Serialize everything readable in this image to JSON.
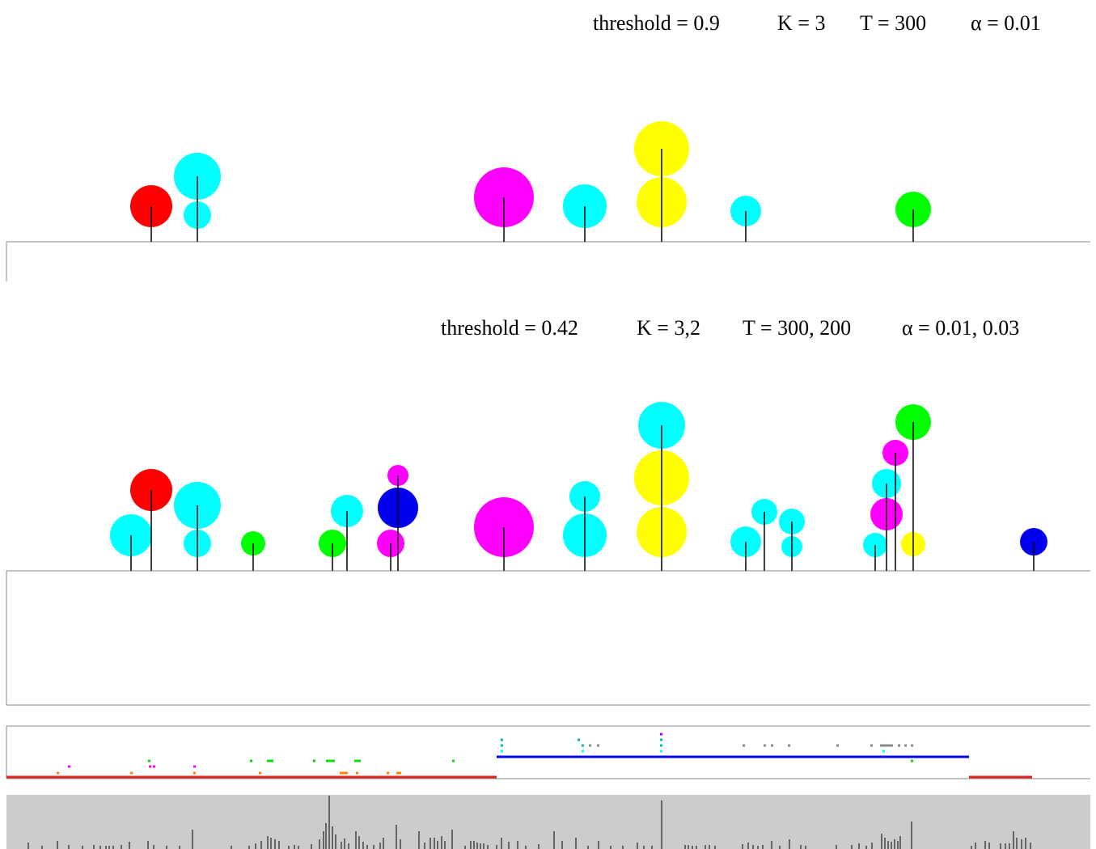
{
  "chart_data": [
    {
      "type": "scatter",
      "subtype": "lollipop-circles",
      "params": {
        "threshold": "threshold = 0.9",
        "K": "K = 3",
        "T": "T = 300",
        "alpha": "α = 0.01"
      },
      "stems": [
        {
          "x": 187,
          "circles": [
            {
              "y": 255,
              "r": 26,
              "color": "#ff0000"
            }
          ]
        },
        {
          "x": 244,
          "circles": [
            {
              "y": 218,
              "r": 29,
              "color": "#00ffff"
            },
            {
              "y": 266,
              "r": 17,
              "color": "#00ffff"
            }
          ]
        },
        {
          "x": 623,
          "circles": [
            {
              "y": 244,
              "r": 37,
              "color": "#ff00ff"
            }
          ]
        },
        {
          "x": 723,
          "circles": [
            {
              "y": 255,
              "r": 27,
              "color": "#00ffff"
            }
          ]
        },
        {
          "x": 818,
          "circles": [
            {
              "y": 184,
              "r": 34,
              "color": "#ffff00"
            },
            {
              "y": 250,
              "r": 31,
              "color": "#ffff00"
            }
          ]
        },
        {
          "x": 922,
          "circles": [
            {
              "y": 261,
              "r": 19,
              "color": "#00ffff"
            }
          ]
        },
        {
          "x": 1129,
          "circles": [
            {
              "y": 259,
              "r": 22,
              "color": "#00ff00"
            }
          ]
        }
      ]
    },
    {
      "type": "scatter",
      "subtype": "lollipop-circles",
      "params": {
        "threshold": "threshold = 0.42",
        "K": "K = 3,2",
        "T": "T = 300, 200",
        "alpha": "α = 0.01, 0.03"
      },
      "stems": [
        {
          "x": 162,
          "circles": [
            {
              "y": 662,
              "r": 26,
              "color": "#00ffff"
            }
          ]
        },
        {
          "x": 187,
          "circles": [
            {
              "y": 606,
              "r": 26,
              "color": "#ff0000"
            }
          ]
        },
        {
          "x": 244,
          "circles": [
            {
              "y": 625,
              "r": 29,
              "color": "#00ffff"
            },
            {
              "y": 672,
              "r": 17,
              "color": "#00ffff"
            }
          ]
        },
        {
          "x": 313,
          "circles": [
            {
              "y": 672,
              "r": 15,
              "color": "#00ff00"
            }
          ]
        },
        {
          "x": 411,
          "circles": [
            {
              "y": 672,
              "r": 17,
              "color": "#00ff00"
            }
          ]
        },
        {
          "x": 429,
          "circles": [
            {
              "y": 632,
              "r": 20,
              "color": "#00ffff"
            }
          ]
        },
        {
          "x": 483,
          "circles": [
            {
              "y": 672,
              "r": 17,
              "color": "#ff00ff"
            }
          ]
        },
        {
          "x": 492,
          "circles": [
            {
              "y": 588,
              "r": 13,
              "color": "#ff00ff"
            },
            {
              "y": 628,
              "r": 25,
              "color": "#0000ee"
            }
          ]
        },
        {
          "x": 623,
          "circles": [
            {
              "y": 652,
              "r": 37,
              "color": "#ff00ff"
            }
          ]
        },
        {
          "x": 723,
          "circles": [
            {
              "y": 614,
              "r": 19,
              "color": "#00ffff"
            },
            {
              "y": 662,
              "r": 27,
              "color": "#00ffff"
            }
          ]
        },
        {
          "x": 818,
          "circles": [
            {
              "y": 526,
              "r": 29,
              "color": "#00ffff"
            },
            {
              "y": 591,
              "r": 34,
              "color": "#ffff00"
            },
            {
              "y": 658,
              "r": 31,
              "color": "#ffff00"
            }
          ]
        },
        {
          "x": 922,
          "circles": [
            {
              "y": 670,
              "r": 19,
              "color": "#00ffff"
            }
          ]
        },
        {
          "x": 945,
          "circles": [
            {
              "y": 633,
              "r": 16,
              "color": "#00ffff"
            }
          ]
        },
        {
          "x": 979,
          "circles": [
            {
              "y": 645,
              "r": 16,
              "color": "#00ffff"
            },
            {
              "y": 676,
              "r": 13,
              "color": "#00ffff"
            }
          ]
        },
        {
          "x": 1082,
          "circles": [
            {
              "y": 674,
              "r": 15,
              "color": "#00ffff"
            }
          ]
        },
        {
          "x": 1096,
          "circles": [
            {
              "y": 598,
              "r": 18,
              "color": "#00ffff"
            },
            {
              "y": 636,
              "r": 20,
              "color": "#ff00ff"
            }
          ]
        },
        {
          "x": 1107,
          "circles": [
            {
              "y": 560,
              "r": 16,
              "color": "#ff00ff"
            }
          ]
        },
        {
          "x": 1129,
          "circles": [
            {
              "y": 522,
              "r": 22,
              "color": "#00ff00"
            },
            {
              "y": 673,
              "r": 15,
              "color": "#ffff00"
            }
          ]
        },
        {
          "x": 1278,
          "circles": [
            {
              "y": 670,
              "r": 17,
              "color": "#0000ee"
            }
          ]
        }
      ]
    },
    {
      "type": "timeline",
      "segments": [
        {
          "x1": 8,
          "x2": 614,
          "y": 961,
          "color": "#dd2222"
        },
        {
          "x1": 614,
          "x2": 1198,
          "y": 936,
          "color": "#0000ee"
        },
        {
          "x1": 1198,
          "x2": 1276,
          "y": 961,
          "color": "#dd2222"
        }
      ],
      "marks": [
        {
          "x": 70,
          "y": 956,
          "w": 3,
          "color": "#ff8800"
        },
        {
          "x": 84,
          "y": 948,
          "w": 3,
          "color": "#ff00ff"
        },
        {
          "x": 161,
          "y": 956,
          "w": 3,
          "color": "#ff8800"
        },
        {
          "x": 183,
          "y": 941,
          "w": 3,
          "color": "#00dd00"
        },
        {
          "x": 184,
          "y": 948,
          "w": 3,
          "color": "#ff00ff"
        },
        {
          "x": 189,
          "y": 948,
          "w": 3,
          "color": "#ff00ff"
        },
        {
          "x": 239,
          "y": 948,
          "w": 3,
          "color": "#ff00ff"
        },
        {
          "x": 239,
          "y": 956,
          "w": 3,
          "color": "#ff8800"
        },
        {
          "x": 309,
          "y": 941,
          "w": 3,
          "color": "#00dd00"
        },
        {
          "x": 320,
          "y": 956,
          "w": 3,
          "color": "#ff8800"
        },
        {
          "x": 330,
          "y": 941,
          "w": 8,
          "color": "#00dd00"
        },
        {
          "x": 387,
          "y": 941,
          "w": 3,
          "color": "#00dd00"
        },
        {
          "x": 403,
          "y": 941,
          "w": 11,
          "color": "#00dd00"
        },
        {
          "x": 420,
          "y": 956,
          "w": 10,
          "color": "#ff8800"
        },
        {
          "x": 438,
          "y": 941,
          "w": 8,
          "color": "#00dd00"
        },
        {
          "x": 440,
          "y": 956,
          "w": 3,
          "color": "#ff8800"
        },
        {
          "x": 478,
          "y": 956,
          "w": 3,
          "color": "#ff8800"
        },
        {
          "x": 490,
          "y": 956,
          "w": 6,
          "color": "#ff8800"
        },
        {
          "x": 559,
          "y": 941,
          "w": 3,
          "color": "#00dd00"
        },
        {
          "x": 619,
          "y": 915,
          "w": 3,
          "color": "#00bbbb"
        },
        {
          "x": 619,
          "y": 922,
          "w": 3,
          "color": "#00bbbb"
        },
        {
          "x": 619,
          "y": 929,
          "w": 3,
          "color": "#00ffff"
        },
        {
          "x": 714,
          "y": 915,
          "w": 3,
          "color": "#00bbbb"
        },
        {
          "x": 719,
          "y": 922,
          "w": 3,
          "color": "#00bbbb"
        },
        {
          "x": 719,
          "y": 929,
          "w": 3,
          "color": "#00ffff"
        },
        {
          "x": 728,
          "y": 922,
          "w": 3,
          "color": "#888888"
        },
        {
          "x": 738,
          "y": 922,
          "w": 3,
          "color": "#888888"
        },
        {
          "x": 816,
          "y": 908,
          "w": 3,
          "color": "#aa00ff"
        },
        {
          "x": 816,
          "y": 915,
          "w": 3,
          "color": "#00bbbb"
        },
        {
          "x": 816,
          "y": 922,
          "w": 3,
          "color": "#00bbbb"
        },
        {
          "x": 816,
          "y": 929,
          "w": 3,
          "color": "#00ffff"
        },
        {
          "x": 918,
          "y": 922,
          "w": 3,
          "color": "#888888"
        },
        {
          "x": 944,
          "y": 922,
          "w": 3,
          "color": "#888888"
        },
        {
          "x": 953,
          "y": 922,
          "w": 3,
          "color": "#888888"
        },
        {
          "x": 974,
          "y": 922,
          "w": 3,
          "color": "#888888"
        },
        {
          "x": 1034,
          "y": 922,
          "w": 3,
          "color": "#888888"
        },
        {
          "x": 1076,
          "y": 922,
          "w": 3,
          "color": "#888888"
        },
        {
          "x": 1088,
          "y": 922,
          "w": 16,
          "color": "#888888"
        },
        {
          "x": 1110,
          "y": 922,
          "w": 3,
          "color": "#888888"
        },
        {
          "x": 1118,
          "y": 922,
          "w": 3,
          "color": "#888888"
        },
        {
          "x": 1126,
          "y": 922,
          "w": 3,
          "color": "#888888"
        },
        {
          "x": 1091,
          "y": 929,
          "w": 3,
          "color": "#00ffff"
        },
        {
          "x": 1126,
          "y": 941,
          "w": 3,
          "color": "#00dd00"
        }
      ]
    },
    {
      "type": "bar",
      "subtype": "spike-train",
      "background": "#cccccc",
      "bars": [
        [
          35,
          8
        ],
        [
          52,
          4
        ],
        [
          71,
          10
        ],
        [
          85,
          5
        ],
        [
          102,
          4
        ],
        [
          116,
          5
        ],
        [
          124,
          4
        ],
        [
          131,
          4
        ],
        [
          135,
          4
        ],
        [
          140,
          4
        ],
        [
          150,
          5
        ],
        [
          160,
          9
        ],
        [
          183,
          10
        ],
        [
          190,
          5
        ],
        [
          206,
          4
        ],
        [
          222,
          4
        ],
        [
          238,
          24
        ],
        [
          286,
          4
        ],
        [
          308,
          4
        ],
        [
          316,
          7
        ],
        [
          323,
          10
        ],
        [
          331,
          16
        ],
        [
          335,
          14
        ],
        [
          340,
          12
        ],
        [
          345,
          10
        ],
        [
          357,
          4
        ],
        [
          364,
          5
        ],
        [
          369,
          4
        ],
        [
          385,
          6
        ],
        [
          395,
          12
        ],
        [
          400,
          22
        ],
        [
          403,
          32
        ],
        [
          407,
          66
        ],
        [
          411,
          28
        ],
        [
          415,
          18
        ],
        [
          422,
          9
        ],
        [
          426,
          13
        ],
        [
          431,
          7
        ],
        [
          440,
          22
        ],
        [
          444,
          16
        ],
        [
          449,
          9
        ],
        [
          454,
          5
        ],
        [
          462,
          5
        ],
        [
          470,
          8
        ],
        [
          474,
          14
        ],
        [
          490,
          30
        ],
        [
          495,
          12
        ],
        [
          518,
          22
        ],
        [
          525,
          8
        ],
        [
          532,
          14
        ],
        [
          537,
          14
        ],
        [
          541,
          10
        ],
        [
          546,
          16
        ],
        [
          550,
          10
        ],
        [
          559,
          24
        ],
        [
          575,
          4
        ],
        [
          582,
          10
        ],
        [
          586,
          10
        ],
        [
          590,
          8
        ],
        [
          594,
          7
        ],
        [
          598,
          7
        ],
        [
          603,
          5
        ],
        [
          614,
          5
        ],
        [
          620,
          14
        ],
        [
          629,
          9
        ],
        [
          640,
          10
        ],
        [
          650,
          4
        ],
        [
          666,
          6
        ],
        [
          685,
          22
        ],
        [
          695,
          10
        ],
        [
          712,
          14
        ],
        [
          727,
          4
        ],
        [
          740,
          10
        ],
        [
          755,
          4
        ],
        [
          770,
          4
        ],
        [
          788,
          8
        ],
        [
          796,
          4
        ],
        [
          806,
          4
        ],
        [
          818,
          60
        ],
        [
          847,
          5
        ],
        [
          851,
          5
        ],
        [
          856,
          4
        ],
        [
          861,
          4
        ],
        [
          872,
          5
        ],
        [
          877,
          5
        ],
        [
          884,
          4
        ],
        [
          918,
          6
        ],
        [
          925,
          8
        ],
        [
          931,
          5
        ],
        [
          937,
          4
        ],
        [
          943,
          5
        ],
        [
          954,
          10
        ],
        [
          964,
          4
        ],
        [
          976,
          12
        ],
        [
          990,
          5
        ],
        [
          996,
          4
        ],
        [
          1034,
          5
        ],
        [
          1053,
          5
        ],
        [
          1062,
          7
        ],
        [
          1071,
          4
        ],
        [
          1078,
          8
        ],
        [
          1090,
          19
        ],
        [
          1094,
          14
        ],
        [
          1098,
          10
        ],
        [
          1102,
          9
        ],
        [
          1106,
          12
        ],
        [
          1110,
          10
        ],
        [
          1113,
          16
        ],
        [
          1127,
          34
        ],
        [
          1201,
          4
        ],
        [
          1206,
          8
        ],
        [
          1218,
          10
        ],
        [
          1223,
          8
        ],
        [
          1237,
          7
        ],
        [
          1243,
          7
        ],
        [
          1248,
          7
        ],
        [
          1253,
          22
        ],
        [
          1257,
          14
        ],
        [
          1263,
          12
        ],
        [
          1268,
          14
        ],
        [
          1274,
          8
        ]
      ]
    }
  ]
}
